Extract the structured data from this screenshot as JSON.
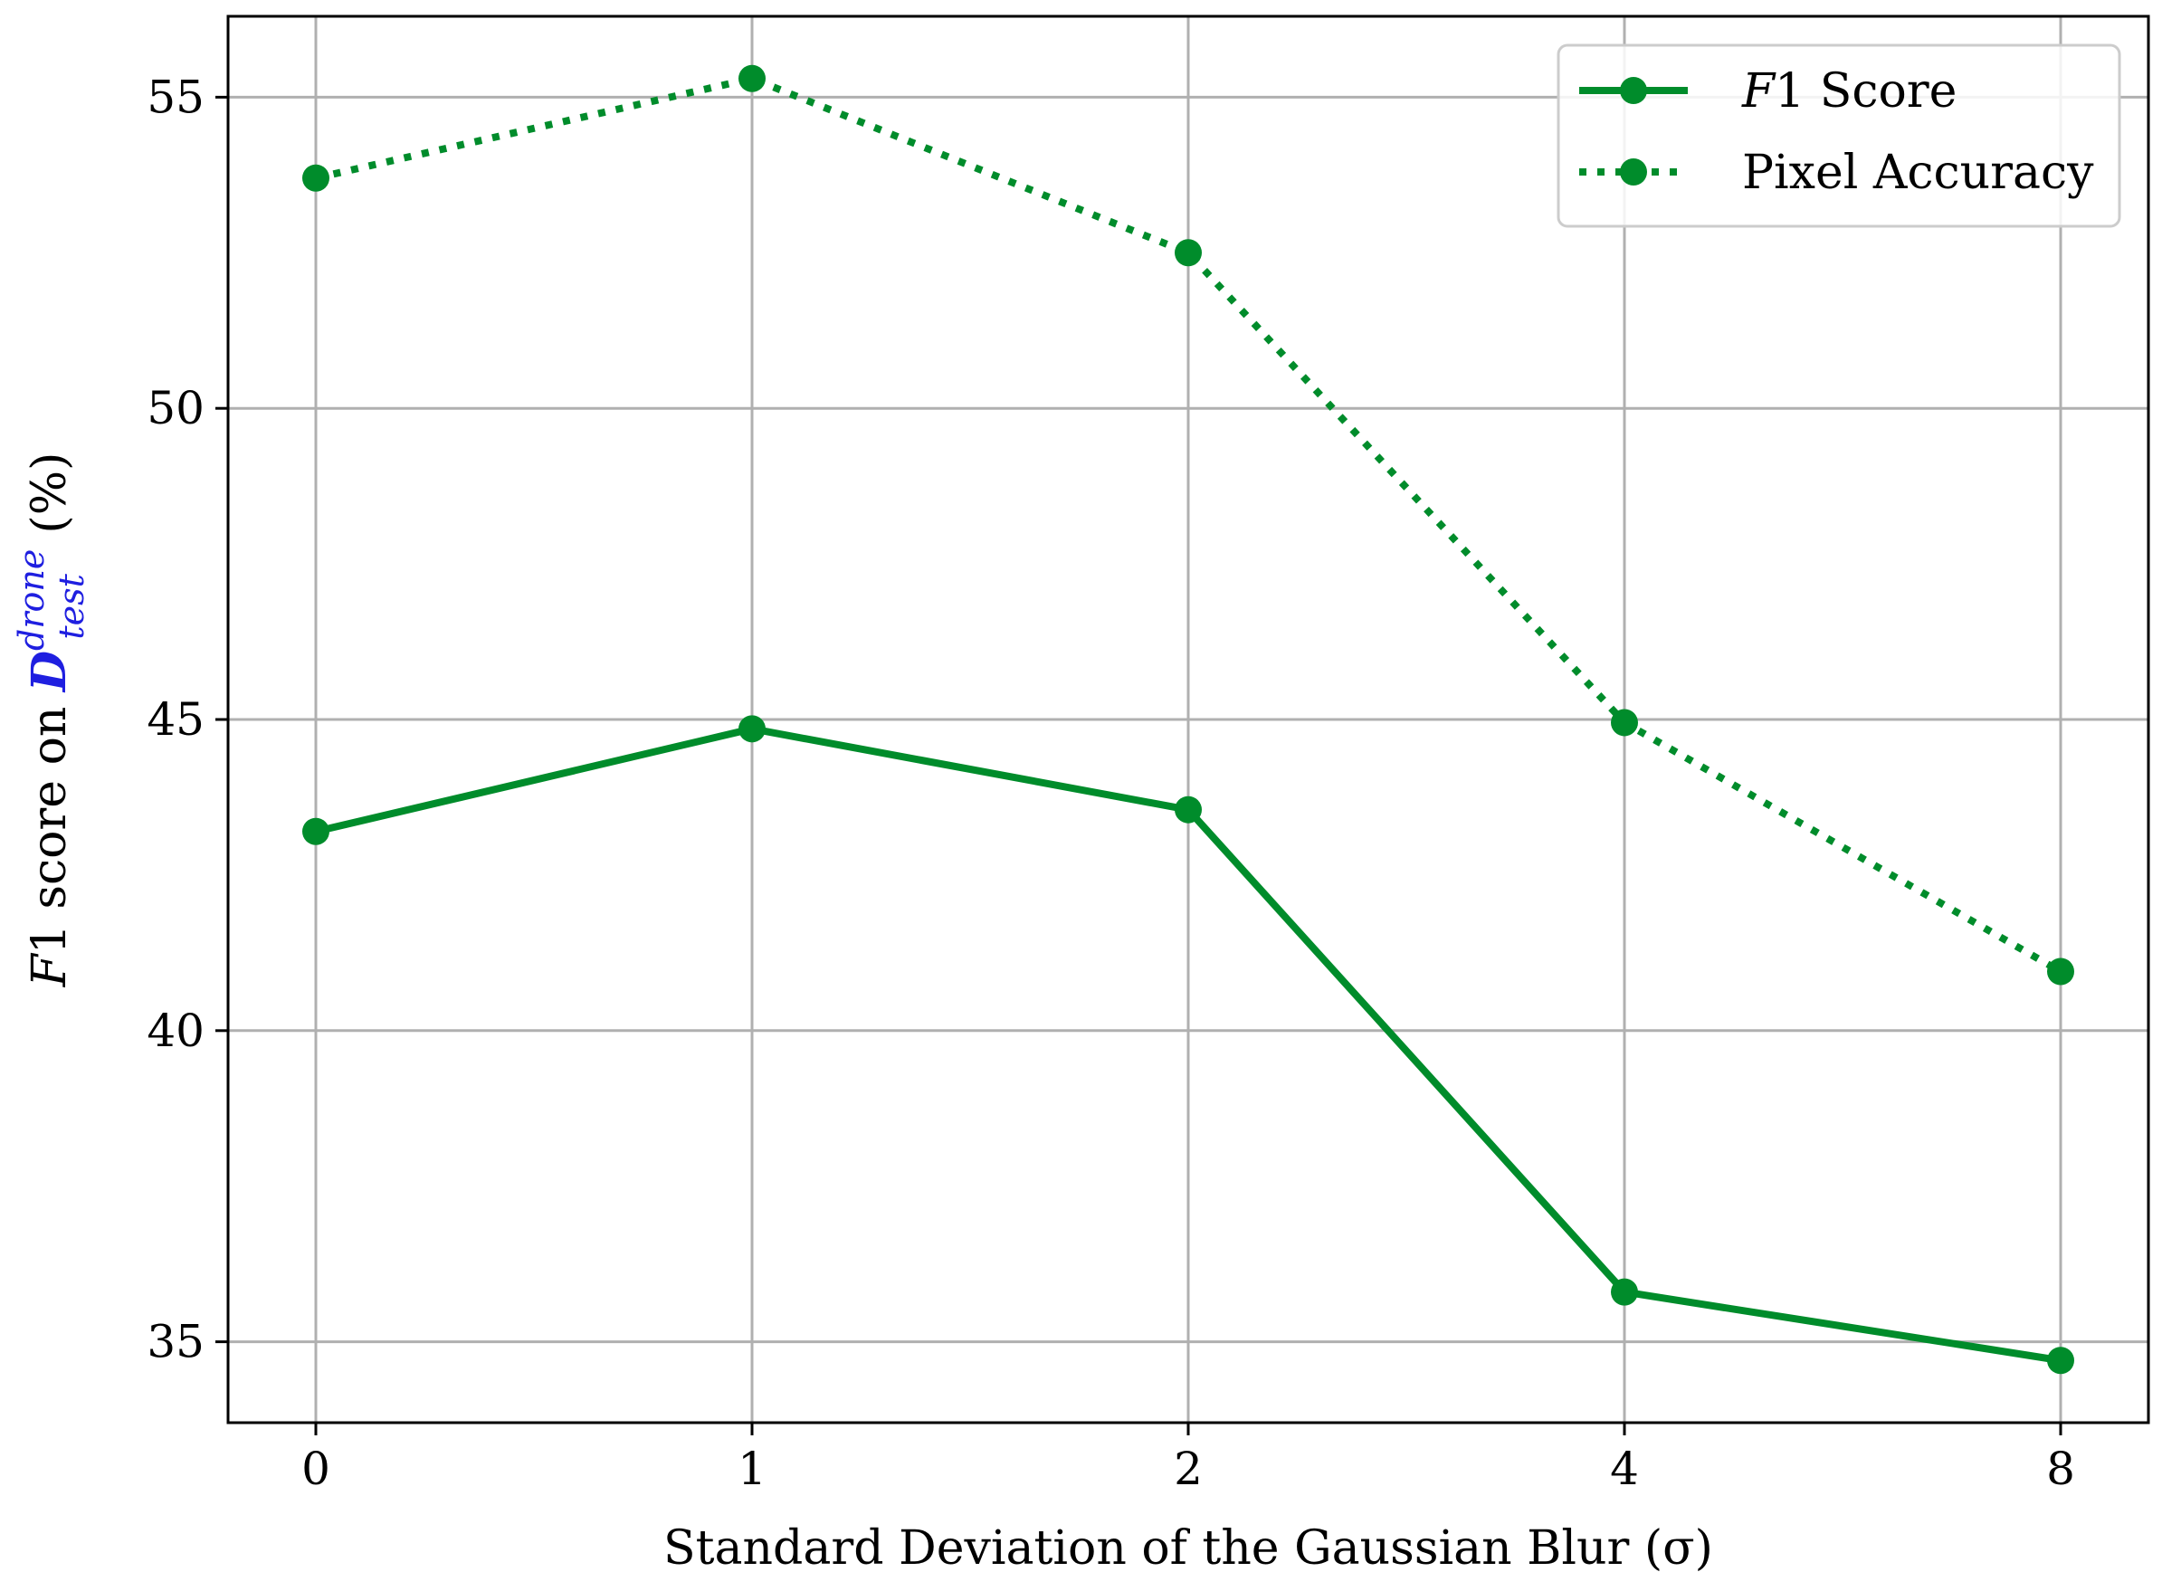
{
  "chart_data": {
    "type": "line",
    "x_categories": [
      "0",
      "1",
      "2",
      "4",
      "8"
    ],
    "series": [
      {
        "name": "F1 Score",
        "name_parts": {
          "italic": "F",
          "rest": "1 Score"
        },
        "style": "solid",
        "color": "#008c2b",
        "values": [
          43.2,
          44.85,
          43.55,
          35.8,
          34.7
        ]
      },
      {
        "name": "Pixel Accuracy",
        "style": "dotted",
        "color": "#008c2b",
        "values": [
          53.7,
          55.3,
          52.5,
          44.95,
          40.95
        ]
      }
    ],
    "xlabel": "Standard Deviation of the Gaussian Blur (σ)",
    "ylabel": {
      "pre_italic": "F",
      "pre_rest": "1 score on ",
      "d_symbol": "D",
      "d_superscript": "drone",
      "d_subscript": "test",
      "post": " (%)"
    },
    "ylim": [
      33.7,
      56.3
    ],
    "yticks": [
      35,
      40,
      45,
      50,
      55
    ],
    "grid": true,
    "legend_position": "top-right"
  }
}
